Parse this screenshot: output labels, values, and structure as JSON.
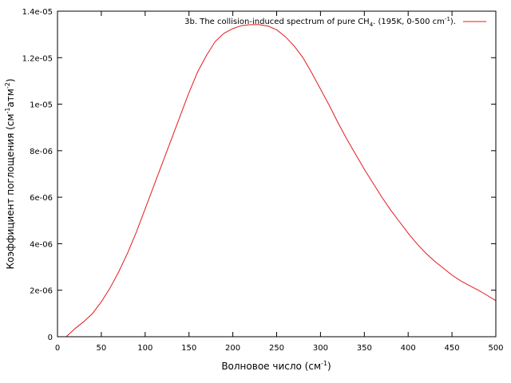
{
  "chart_data": {
    "type": "line",
    "title": "",
    "xlabel": "Волновое число (см",
    "xlabel_sup": "-1",
    "xlabel_end": ")",
    "ylabel_parts": [
      "Коэффициент поглощения (см",
      "-1",
      "атм",
      "-2",
      ")"
    ],
    "xlim": [
      0,
      500
    ],
    "ylim": [
      0,
      1.4e-05
    ],
    "x_ticks": [
      0,
      50,
      100,
      150,
      200,
      250,
      300,
      350,
      400,
      450,
      500
    ],
    "x_tick_labels": [
      "0",
      "50",
      "100",
      "150",
      "200",
      "250",
      "300",
      "350",
      "400",
      "450",
      "500"
    ],
    "y_ticks": [
      0,
      2e-06,
      4e-06,
      6e-06,
      8e-06,
      1e-05,
      1.2e-05,
      1.4e-05
    ],
    "y_tick_labels": [
      "0",
      "2e-06",
      "4e-06",
      "6e-06",
      "8e-06",
      "1e-05",
      "1.2e-05",
      "1.4e-05"
    ],
    "grid": false,
    "legend_position": "top-right",
    "series": [
      {
        "name_parts": [
          "3b. The collision-induced spectrum of pure CH",
          "4",
          ". (195K, 0-500 cm",
          "-1",
          ")."
        ],
        "color": "#e41a1c",
        "x": [
          10,
          20,
          30,
          40,
          50,
          60,
          70,
          80,
          90,
          100,
          110,
          120,
          130,
          140,
          150,
          160,
          170,
          180,
          190,
          200,
          210,
          220,
          230,
          240,
          250,
          260,
          270,
          280,
          290,
          300,
          310,
          320,
          330,
          340,
          350,
          360,
          370,
          380,
          390,
          400,
          410,
          420,
          430,
          440,
          450,
          460,
          470,
          480,
          490,
          500
        ],
        "y": [
          0,
          3.5e-07,
          6.5e-07,
          1e-06,
          1.5e-06,
          2.1e-06,
          2.8e-06,
          3.6e-06,
          4.5e-06,
          5.5e-06,
          6.5e-06,
          7.5e-06,
          8.5e-06,
          9.5e-06,
          1.05e-05,
          1.14e-05,
          1.21e-05,
          1.27e-05,
          1.305e-05,
          1.325e-05,
          1.338e-05,
          1.342e-05,
          1.342e-05,
          1.336e-05,
          1.32e-05,
          1.29e-05,
          1.25e-05,
          1.2e-05,
          1.135e-05,
          1.065e-05,
          9.95e-06,
          9.2e-06,
          8.5e-06,
          7.85e-06,
          7.2e-06,
          6.6e-06,
          6e-06,
          5.45e-06,
          4.95e-06,
          4.45e-06,
          4e-06,
          3.6e-06,
          3.25e-06,
          2.95e-06,
          2.65e-06,
          2.4e-06,
          2.2e-06,
          2e-06,
          1.78e-06,
          1.55e-06
        ]
      }
    ]
  }
}
